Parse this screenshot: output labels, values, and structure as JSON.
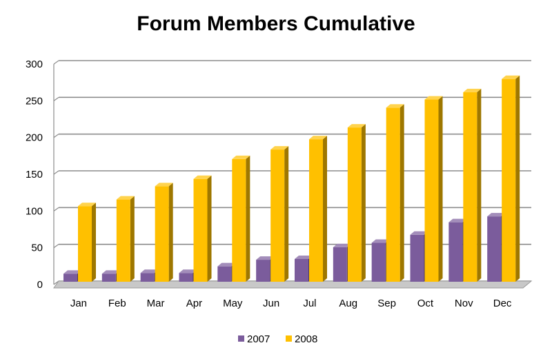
{
  "chart_data": {
    "type": "bar",
    "title": "Forum Members Cumulative",
    "xlabel": "",
    "ylabel": "",
    "categories": [
      "Jan",
      "Feb",
      "Mar",
      "Apr",
      "May",
      "Jun",
      "Jul",
      "Aug",
      "Sep",
      "Oct",
      "Nov",
      "Dec"
    ],
    "series": [
      {
        "name": "2007",
        "color": "#7b5c9c",
        "values": [
          10,
          10,
          11,
          11,
          20,
          29,
          30,
          46,
          52,
          63,
          80,
          88
        ]
      },
      {
        "name": "2008",
        "color": "#ffc000",
        "values": [
          102,
          111,
          129,
          139,
          166,
          179,
          193,
          209,
          236,
          247,
          257,
          275
        ]
      }
    ],
    "ylim": [
      0,
      300
    ],
    "yticks": [
      "0",
      "50",
      "100",
      "150",
      "200",
      "250",
      "300"
    ],
    "grid": true,
    "legend_position": "bottom",
    "style": "3d-bar"
  }
}
